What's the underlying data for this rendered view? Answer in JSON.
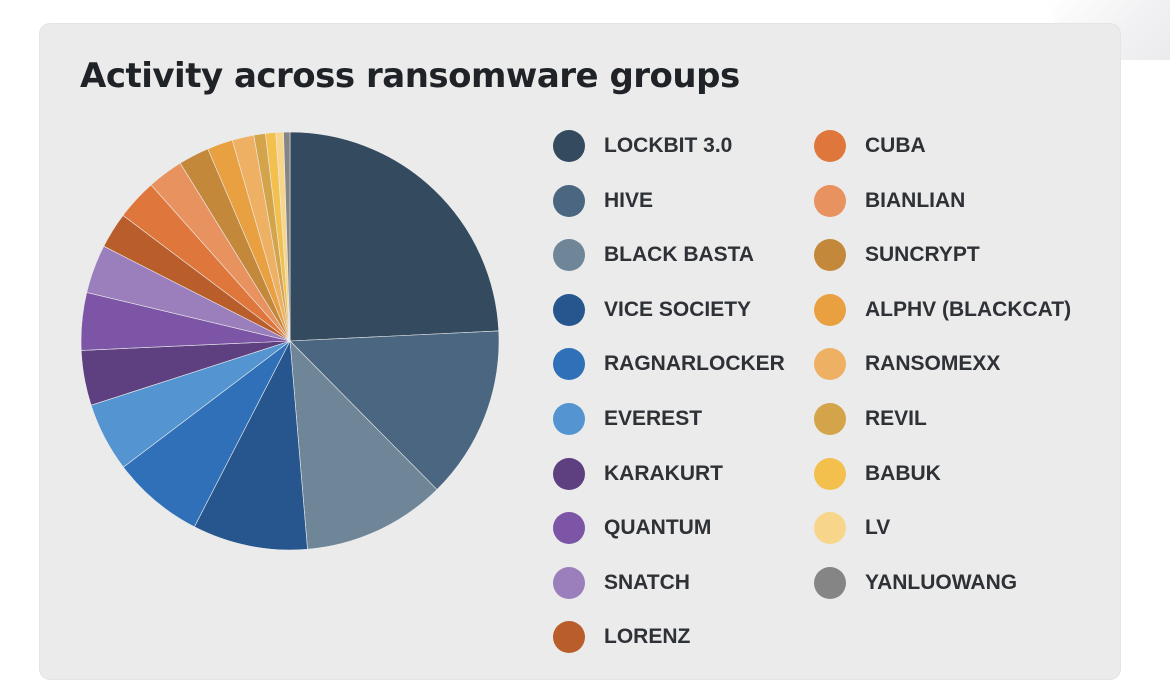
{
  "chart_data": {
    "type": "pie",
    "title": "Activity across ransomware groups",
    "legend_position": "right",
    "slices": [
      {
        "label": "LOCKBIT 3.0",
        "value": 24.5,
        "color": "#344b5f"
      },
      {
        "label": "HIVE",
        "value": 13.5,
        "color": "#4a6680"
      },
      {
        "label": "BLACK BASTA",
        "value": 11.2,
        "color": "#6f8699"
      },
      {
        "label": "VICE SOCIETY",
        "value": 9.0,
        "color": "#27568e"
      },
      {
        "label": "RAGNARLOCKER",
        "value": 7.2,
        "color": "#3070b8"
      },
      {
        "label": "EVEREST",
        "value": 5.4,
        "color": "#5394d1"
      },
      {
        "label": "KARAKURT",
        "value": 4.3,
        "color": "#5e3f7f"
      },
      {
        "label": "QUANTUM",
        "value": 4.5,
        "color": "#7d55a6"
      },
      {
        "label": "SNATCH",
        "value": 3.8,
        "color": "#9b7fbc"
      },
      {
        "label": "LORENZ",
        "value": 2.8,
        "color": "#b95e2b"
      },
      {
        "label": "CUBA",
        "value": 3.2,
        "color": "#df773c"
      },
      {
        "label": "BIANLIAN",
        "value": 2.8,
        "color": "#e8925f"
      },
      {
        "label": "SUNCRYPT",
        "value": 2.4,
        "color": "#c3883a"
      },
      {
        "label": "ALPHV (BLACKCAT)",
        "value": 2.0,
        "color": "#e8a040"
      },
      {
        "label": "RANSOMEXX",
        "value": 1.7,
        "color": "#eeb163"
      },
      {
        "label": "REVIL",
        "value": 0.9,
        "color": "#d3a44a"
      },
      {
        "label": "BABUK",
        "value": 0.8,
        "color": "#f3c04e"
      },
      {
        "label": "LV",
        "value": 0.6,
        "color": "#f7d58b"
      },
      {
        "label": "YANLUOWANG",
        "value": 0.5,
        "color": "#858585"
      }
    ]
  }
}
